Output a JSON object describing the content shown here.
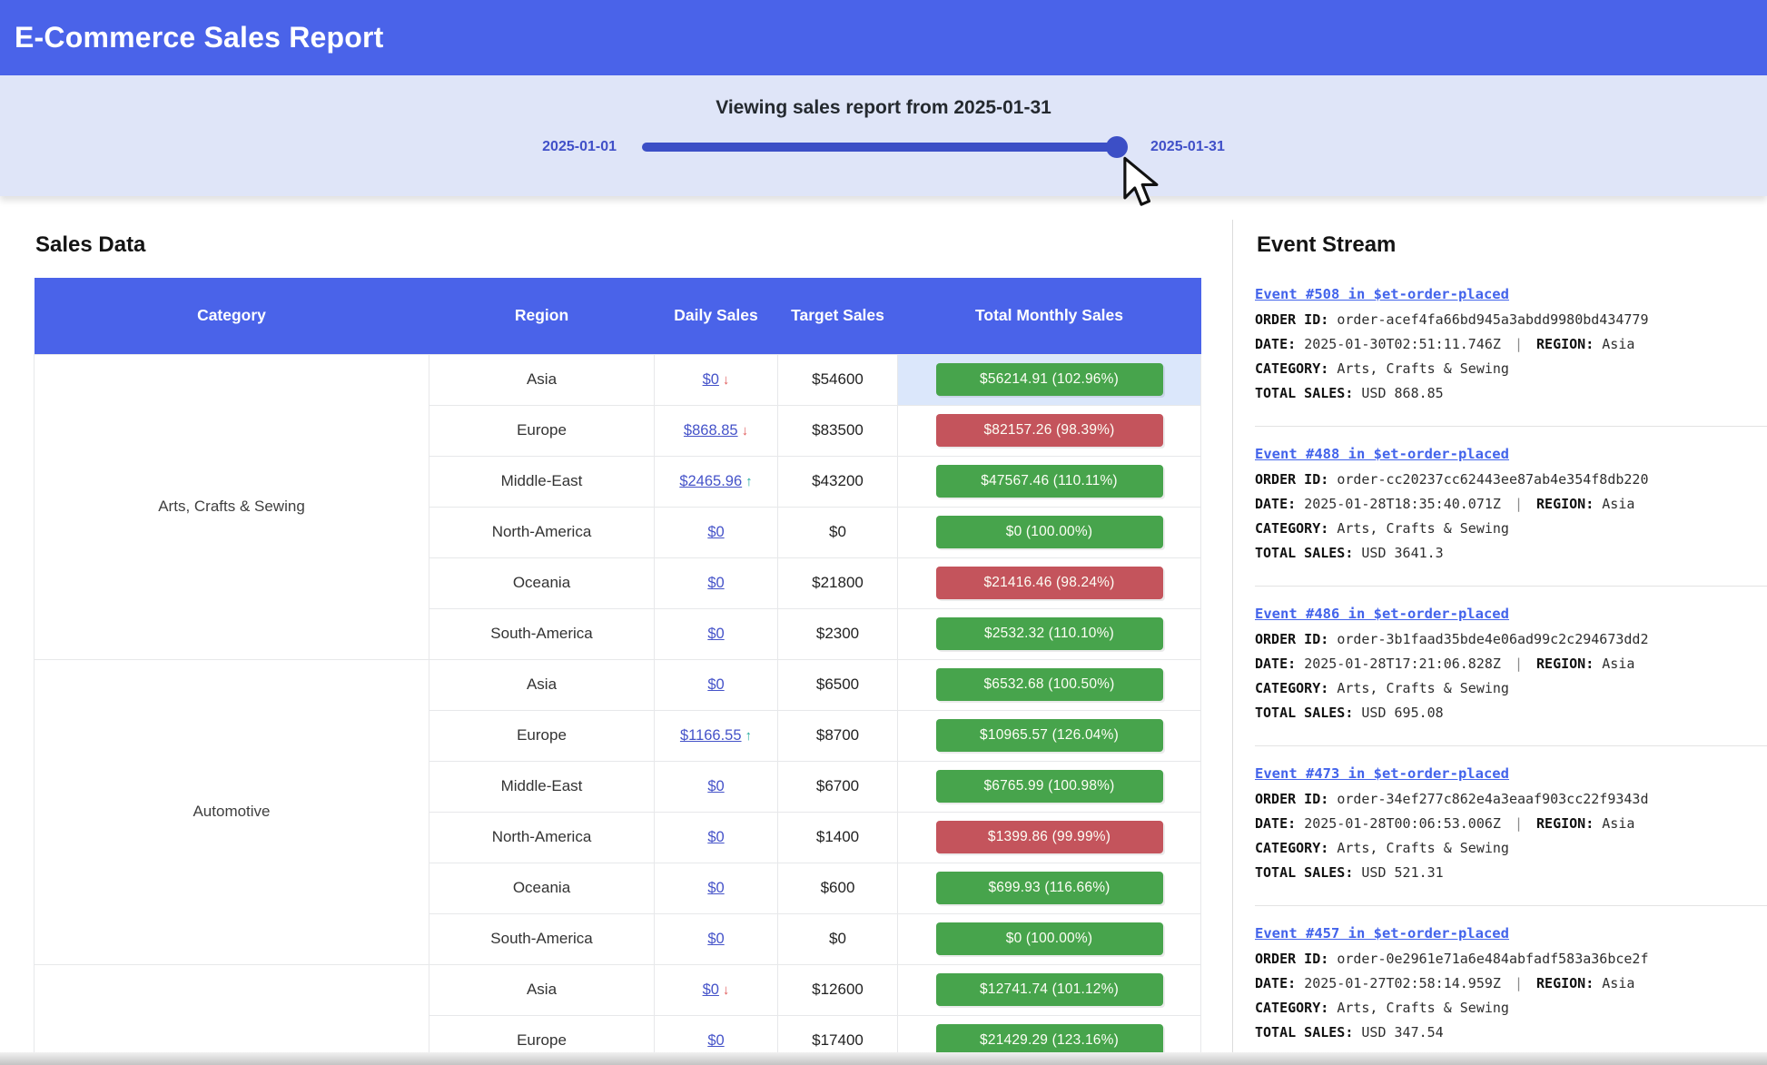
{
  "header": {
    "title": "E-Commerce Sales Report"
  },
  "slider": {
    "title": "Viewing sales report from 2025-01-31",
    "min_label": "2025-01-01",
    "max_label": "2025-01-31",
    "value_percent": 100
  },
  "sales": {
    "heading": "Sales Data",
    "columns": [
      "Category",
      "Region",
      "Daily Sales",
      "Target Sales",
      "Total Monthly Sales"
    ],
    "groups": [
      {
        "category": "Arts, Crafts & Sewing",
        "rows": [
          {
            "region": "Asia",
            "daily": "$0",
            "arrow": "down",
            "target": "$54600",
            "total": "$56214.91 (102.96%)",
            "status": "green",
            "highlight": true
          },
          {
            "region": "Europe",
            "daily": "$868.85",
            "arrow": "down",
            "target": "$83500",
            "total": "$82157.26 (98.39%)",
            "status": "red"
          },
          {
            "region": "Middle-East",
            "daily": "$2465.96",
            "arrow": "up",
            "target": "$43200",
            "total": "$47567.46 (110.11%)",
            "status": "green"
          },
          {
            "region": "North-America",
            "daily": "$0",
            "arrow": "none",
            "target": "$0",
            "total": "$0 (100.00%)",
            "status": "green"
          },
          {
            "region": "Oceania",
            "daily": "$0",
            "arrow": "none",
            "target": "$21800",
            "total": "$21416.46 (98.24%)",
            "status": "red"
          },
          {
            "region": "South-America",
            "daily": "$0",
            "arrow": "none",
            "target": "$2300",
            "total": "$2532.32 (110.10%)",
            "status": "green"
          }
        ]
      },
      {
        "category": "Automotive",
        "rows": [
          {
            "region": "Asia",
            "daily": "$0",
            "arrow": "none",
            "target": "$6500",
            "total": "$6532.68 (100.50%)",
            "status": "green"
          },
          {
            "region": "Europe",
            "daily": "$1166.55",
            "arrow": "up",
            "target": "$8700",
            "total": "$10965.57 (126.04%)",
            "status": "green"
          },
          {
            "region": "Middle-East",
            "daily": "$0",
            "arrow": "none",
            "target": "$6700",
            "total": "$6765.99 (100.98%)",
            "status": "green"
          },
          {
            "region": "North-America",
            "daily": "$0",
            "arrow": "none",
            "target": "$1400",
            "total": "$1399.86 (99.99%)",
            "status": "red"
          },
          {
            "region": "Oceania",
            "daily": "$0",
            "arrow": "none",
            "target": "$600",
            "total": "$699.93 (116.66%)",
            "status": "green"
          },
          {
            "region": "South-America",
            "daily": "$0",
            "arrow": "none",
            "target": "$0",
            "total": "$0 (100.00%)",
            "status": "green"
          }
        ]
      },
      {
        "category": "",
        "rows": [
          {
            "region": "Asia",
            "daily": "$0",
            "arrow": "down",
            "target": "$12600",
            "total": "$12741.74 (101.12%)",
            "status": "green"
          },
          {
            "region": "Europe",
            "daily": "$0",
            "arrow": "none",
            "target": "$17400",
            "total": "$21429.29 (123.16%)",
            "status": "green"
          }
        ]
      }
    ]
  },
  "events": {
    "heading": "Event Stream",
    "labels": {
      "order_id": "ORDER ID:",
      "date": "DATE:",
      "region": "REGION:",
      "category": "CATEGORY:",
      "total_sales": "TOTAL SALES:"
    },
    "items": [
      {
        "title": "Event #508 in $et-order-placed",
        "order_id": "order-acef4fa66bd945a3abdd9980bd434779",
        "date": "2025-01-30T02:51:11.746Z",
        "region": "Asia",
        "category": "Arts, Crafts & Sewing",
        "total_sales": "USD 868.85"
      },
      {
        "title": "Event #488 in $et-order-placed",
        "order_id": "order-cc20237cc62443ee87ab4e354f8db220",
        "date": "2025-01-28T18:35:40.071Z",
        "region": "Asia",
        "category": "Arts, Crafts & Sewing",
        "total_sales": "USD 3641.3"
      },
      {
        "title": "Event #486 in $et-order-placed",
        "order_id": "order-3b1faad35bde4e06ad99c2c294673dd2",
        "date": "2025-01-28T17:21:06.828Z",
        "region": "Asia",
        "category": "Arts, Crafts & Sewing",
        "total_sales": "USD 695.08"
      },
      {
        "title": "Event #473 in $et-order-placed",
        "order_id": "order-34ef277c862e4a3eaaf903cc22f9343d",
        "date": "2025-01-28T00:06:53.006Z",
        "region": "Asia",
        "category": "Arts, Crafts & Sewing",
        "total_sales": "USD 521.31"
      },
      {
        "title": "Event #457 in $et-order-placed",
        "order_id": "order-0e2961e71a6e484abfadf583a36bce2f",
        "date": "2025-01-27T02:58:14.959Z",
        "region": "Asia",
        "category": "Arts, Crafts & Sewing",
        "total_sales": "USD 347.54"
      }
    ]
  },
  "colors": {
    "accent_blue": "#4a63e9",
    "slider_indigo": "#3c4fc6",
    "positive_green": "#47a44c",
    "negative_red": "#c4545c",
    "row_highlight": "#dbe7fb",
    "link_blue": "#4263eb"
  }
}
